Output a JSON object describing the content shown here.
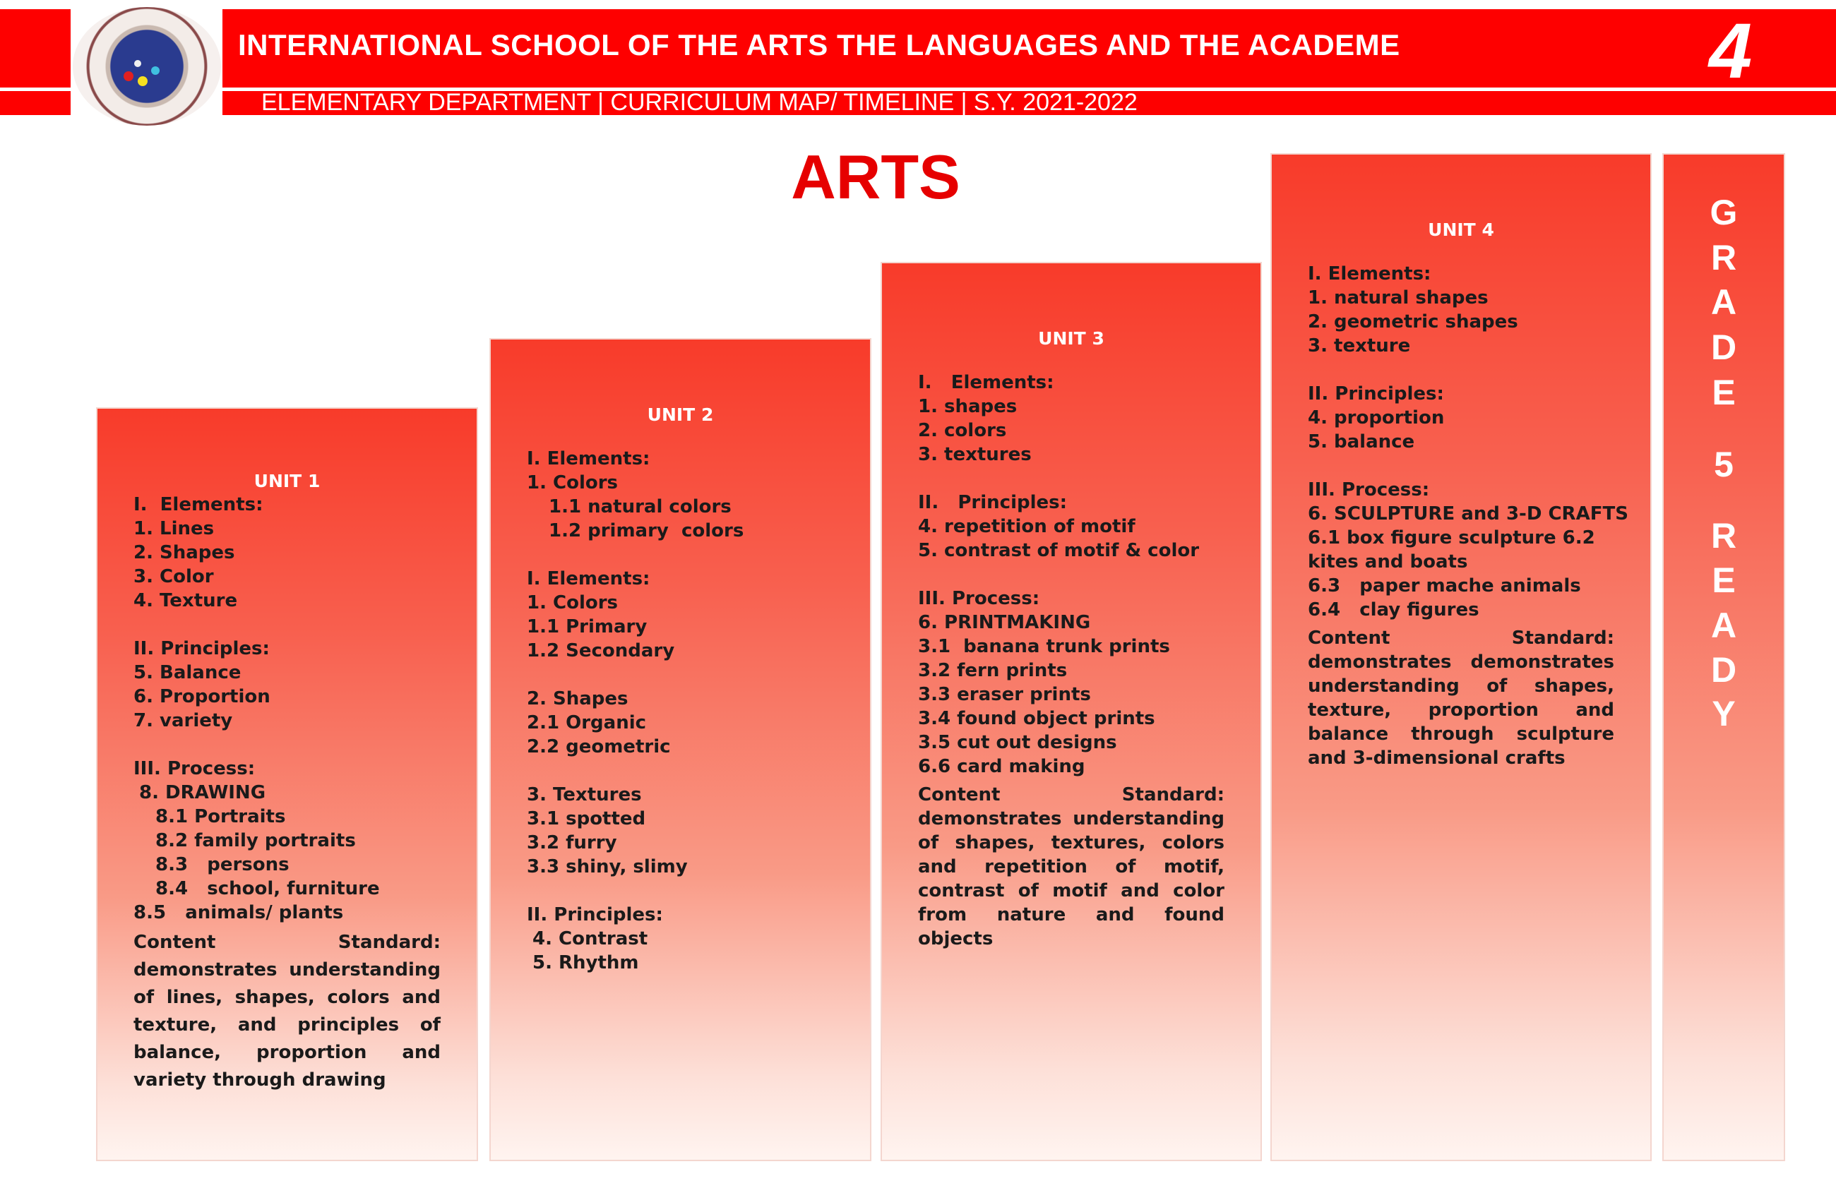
{
  "header": {
    "school_name": "INTERNATIONAL SCHOOL OF THE ARTS THE LANGUAGES AND THE ACADEME",
    "subtitle": "ELEMENTARY DEPARTMENT | CURRICULUM MAP/ TIMELINE | S.Y. 2021-2022",
    "grade_number": "4",
    "logo_text": "International School of the Arts, the Languages and the Academe • Philippines •",
    "brand_color": "#fe0000"
  },
  "subject": "ARTS",
  "units": [
    {
      "title": "UNIT 1",
      "lines": [
        {
          "t": "I.  Elements:",
          "i": 0
        },
        {
          "t": "1. Lines",
          "i": 0
        },
        {
          "t": "2. Shapes",
          "i": 0
        },
        {
          "t": "3. Color",
          "i": 0
        },
        {
          "t": "4. Texture",
          "i": 0
        },
        {
          "t": "",
          "i": 0
        },
        {
          "t": "II. Principles:",
          "i": 0
        },
        {
          "t": "5. Balance",
          "i": 0
        },
        {
          "t": "6. Proportion",
          "i": 0
        },
        {
          "t": "7. variety",
          "i": 0
        },
        {
          "t": "",
          "i": 0
        },
        {
          "t": "III. Process:",
          "i": 0
        },
        {
          "t": "8. DRAWING",
          "i": 1
        },
        {
          "t": "8.1 Portraits",
          "i": 2
        },
        {
          "t": "8.2 family portraits",
          "i": 2
        },
        {
          "t": "8.3   persons",
          "i": 2
        },
        {
          "t": "8.4   school, furniture",
          "i": 2
        },
        {
          "t": "8.5   animals/ plants",
          "i": 0
        }
      ],
      "content_standard": "Content Standard: demonstrates understanding of lines, shapes, colors and texture, and principles of balance, proportion and variety through drawing"
    },
    {
      "title": "UNIT 2",
      "lines": [
        {
          "t": "I. Elements:",
          "i": 0
        },
        {
          "t": "1. Colors",
          "i": 0
        },
        {
          "t": "1.1 natural colors",
          "i": 2
        },
        {
          "t": "1.2 primary  colors",
          "i": 2
        },
        {
          "t": "",
          "i": 0
        },
        {
          "t": "I. Elements:",
          "i": 0
        },
        {
          "t": "1. Colors",
          "i": 0
        },
        {
          "t": "1.1 Primary",
          "i": 0
        },
        {
          "t": "1.2 Secondary",
          "i": 0
        },
        {
          "t": "",
          "i": 0
        },
        {
          "t": "2. Shapes",
          "i": 0
        },
        {
          "t": "2.1 Organic",
          "i": 0
        },
        {
          "t": "2.2 geometric",
          "i": 0
        },
        {
          "t": "",
          "i": 0
        },
        {
          "t": "3. Textures",
          "i": 0
        },
        {
          "t": "3.1 spotted",
          "i": 0
        },
        {
          "t": "3.2 furry",
          "i": 0
        },
        {
          "t": "3.3 shiny, slimy",
          "i": 0
        },
        {
          "t": "",
          "i": 0
        },
        {
          "t": "II. Principles:",
          "i": 0
        },
        {
          "t": "4. Contrast",
          "i": 1
        },
        {
          "t": "5. Rhythm",
          "i": 1
        }
      ],
      "content_standard": ""
    },
    {
      "title": "UNIT 3",
      "lines": [
        {
          "t": "I.   Elements:",
          "i": 0
        },
        {
          "t": "1. shapes",
          "i": 0
        },
        {
          "t": "2. colors",
          "i": 0
        },
        {
          "t": "3. textures",
          "i": 0
        },
        {
          "t": "",
          "i": 0
        },
        {
          "t": "II.   Principles:",
          "i": 0
        },
        {
          "t": "4. repetition of motif",
          "i": 0
        },
        {
          "t": "5. contrast of motif & color",
          "i": 0
        },
        {
          "t": "",
          "i": 0
        },
        {
          "t": "III. Process:",
          "i": 0
        },
        {
          "t": "6. PRINTMAKING",
          "i": 0
        },
        {
          "t": "3.1  banana trunk prints",
          "i": 0
        },
        {
          "t": "3.2 fern prints",
          "i": 0
        },
        {
          "t": "3.3 eraser prints",
          "i": 0
        },
        {
          "t": "3.4 found object prints",
          "i": 0
        },
        {
          "t": "3.5 cut out designs",
          "i": 0
        },
        {
          "t": "6.6 card making",
          "i": 0
        }
      ],
      "content_standard": "Content Standard: demonstrates understanding of shapes, textures, colors and repetition of motif, contrast of motif and color from nature and found objects"
    },
    {
      "title": "UNIT 4",
      "lines": [
        {
          "t": "I. Elements:",
          "i": 0
        },
        {
          "t": "1. natural shapes",
          "i": 0
        },
        {
          "t": "2. geometric shapes",
          "i": 0
        },
        {
          "t": "3. texture",
          "i": 0
        },
        {
          "t": "",
          "i": 0
        },
        {
          "t": "II. Principles:",
          "i": 0
        },
        {
          "t": "4. proportion",
          "i": 0
        },
        {
          "t": "5. balance",
          "i": 0
        },
        {
          "t": "",
          "i": 0
        },
        {
          "t": "III. Process:",
          "i": 0
        },
        {
          "t": "6. SCULPTURE and 3-D CRAFTS",
          "i": 0
        },
        {
          "t": "6.1 box figure sculpture 6.2",
          "i": 0
        },
        {
          "t": "kites and boats",
          "i": 0
        },
        {
          "t": "6.3   paper mache animals",
          "i": 0
        },
        {
          "t": "6.4   clay figures",
          "i": 0
        }
      ],
      "content_standard": "Content Standard: demonstrates demonstrates understanding of shapes, texture, proportion and balance through sculpture and 3-dimensional crafts"
    }
  ],
  "grade_banner": [
    "G",
    "R",
    "A",
    "D",
    "E",
    "5",
    "R",
    "E",
    "A",
    "D",
    "Y"
  ]
}
